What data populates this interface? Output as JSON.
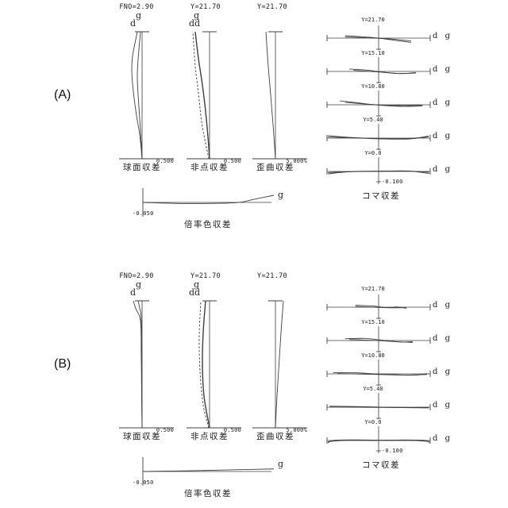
{
  "sections": [
    {
      "label": "(A)"
    },
    {
      "label": "(B)"
    }
  ],
  "colors": {
    "line": "#3f3f3f",
    "text": "#1c1c1c",
    "background": "#ffffff"
  },
  "chart_data": [
    {
      "id": "A-sph",
      "type": "line",
      "title": "FNO=2.90",
      "caption": "球面収差",
      "scale_label": "0.500",
      "axis_range": [
        -0.5,
        0.5
      ],
      "curve_labels": [
        "g",
        "d"
      ],
      "series": [
        {
          "name": "d",
          "points": [
            [
              0,
              0
            ],
            [
              0.19,
              -0.044
            ],
            [
              0.34,
              -0.103
            ],
            [
              0.53,
              -0.162
            ],
            [
              0.69,
              -0.191
            ],
            [
              0.81,
              -0.176
            ],
            [
              1,
              -0.088
            ]
          ]
        },
        {
          "name": "g",
          "points": [
            [
              0,
              0
            ],
            [
              0.22,
              -0.029
            ],
            [
              0.41,
              -0.059
            ],
            [
              0.63,
              -0.088
            ],
            [
              0.78,
              -0.074
            ],
            [
              1,
              -0.029
            ]
          ]
        }
      ]
    },
    {
      "id": "A-ast",
      "type": "line",
      "title": "Y=21.70",
      "caption": "非点収差",
      "scale_label": "0.500",
      "axis_range": [
        -0.5,
        0.5
      ],
      "curve_labels": [
        "g",
        "dd"
      ],
      "series": [
        {
          "name": "solid",
          "wide": true,
          "points": [
            [
              0,
              0
            ],
            [
              0.17,
              -0.029
            ],
            [
              0.375,
              -0.074
            ],
            [
              0.58,
              -0.132
            ],
            [
              0.79,
              -0.206
            ],
            [
              1,
              -0.265
            ]
          ]
        },
        {
          "name": "dashed",
          "dash": true,
          "points": [
            [
              0,
              -0.01
            ],
            [
              0.09,
              -0.059
            ],
            [
              0.29,
              -0.147
            ],
            [
              0.52,
              -0.206
            ],
            [
              0.73,
              -0.265
            ],
            [
              1,
              -0.309
            ]
          ]
        }
      ]
    },
    {
      "id": "A-dis",
      "type": "line",
      "title": "Y=21.70",
      "caption": "歪曲収差",
      "scale_label": "5.000%",
      "axis_range": [
        -5,
        5
      ],
      "series": [
        {
          "name": "distortion",
          "points": [
            [
              0,
              0
            ],
            [
              0.25,
              -0.41
            ],
            [
              0.5,
              -0.88
            ],
            [
              0.75,
              -1.37
            ],
            [
              1,
              -1.76
            ]
          ]
        }
      ]
    },
    {
      "id": "A-chr",
      "type": "line",
      "caption": "倍率色収差",
      "scale_label": "-0.050",
      "curve_label": "g",
      "axis_range": [
        -0.05,
        0.05
      ],
      "series": [
        {
          "name": "g",
          "points": [
            [
              0,
              0
            ],
            [
              0.3,
              -0.004
            ],
            [
              0.6,
              -0.003
            ],
            [
              0.75,
              0.001
            ],
            [
              0.85,
              0.011
            ],
            [
              1,
              0.025
            ]
          ]
        }
      ]
    },
    {
      "id": "A-coma",
      "type": "line",
      "caption": "コマ収差",
      "scale_label": "-0.100",
      "rows": [
        {
          "label": "Y=21.70",
          "legend": "d g",
          "series": [
            {
              "points": [
                [
                  -0.65,
                  0.019
                ],
                [
                  -0.26,
                  0.009
                ],
                [
                  0,
                  0
                ],
                [
                  0.35,
                  -0.019
                ],
                [
                  0.63,
                  -0.034
                ]
              ]
            },
            {
              "points": [
                [
                  -0.65,
                  0.009
                ],
                [
                  -0.2,
                  0.002
                ],
                [
                  0.2,
                  -0.006
                ],
                [
                  0.63,
                  -0.022
                ]
              ]
            }
          ]
        },
        {
          "label": "Y=15.10",
          "legend": "d g",
          "series": [
            {
              "points": [
                [
                  -0.57,
                  0.019
                ],
                [
                  -0.26,
                  0.012
                ],
                [
                  0,
                  -0.002
                ],
                [
                  0.35,
                  -0.016
                ],
                [
                  0.72,
                  -0.013
                ]
              ]
            },
            {
              "points": [
                [
                  -0.49,
                  0.009
                ],
                [
                  0,
                  -0.004
                ],
                [
                  0.45,
                  -0.017
                ],
                [
                  0.72,
                  -0.008
                ]
              ]
            }
          ]
        },
        {
          "label": "Y=10.80",
          "legend": "d g",
          "series": [
            {
              "points": [
                [
                  -0.75,
                  0.031
                ],
                [
                  -0.42,
                  0.016
                ],
                [
                  0,
                  -0.003
                ],
                [
                  0.43,
                  -0.013
                ],
                [
                  0.85,
                  -0.009
                ]
              ]
            },
            {
              "points": [
                [
                  -0.65,
                  0.019
                ],
                [
                  -0.2,
                  0.004
                ],
                [
                  0.3,
                  -0.006
                ],
                [
                  0.85,
                  -0.003
                ]
              ]
            }
          ]
        },
        {
          "label": "Y=5.40",
          "legend": "d g",
          "series": [
            {
              "points": [
                [
                  -0.98,
                  0.019
                ],
                [
                  -0.57,
                  0.006
                ],
                [
                  0,
                  -0.003
                ],
                [
                  0.51,
                  -0.004
                ],
                [
                  0.97,
                  0.009
                ]
              ]
            },
            {
              "points": [
                [
                  -0.98,
                  0.009
                ],
                [
                  -0.49,
                  0.002
                ],
                [
                  0,
                  -0.006
                ],
                [
                  0.58,
                  -0.007
                ],
                [
                  0.97,
                  0.016
                ]
              ]
            }
          ]
        },
        {
          "label": "Y=0.0",
          "legend": "d g",
          "series": [
            {
              "points": [
                [
                  -0.98,
                  -0.019
                ],
                [
                  -0.57,
                  -0.003
                ],
                [
                  0,
                  0.001
                ],
                [
                  0.58,
                  0.003
                ],
                [
                  0.98,
                  -0.016
                ]
              ]
            },
            {
              "points": [
                [
                  -0.98,
                  -0.009
                ],
                [
                  -0.42,
                  0.001
                ],
                [
                  0,
                  0.003
                ],
                [
                  0.51,
                  0.004
                ],
                [
                  0.98,
                  -0.006
                ]
              ]
            }
          ]
        }
      ]
    },
    {
      "id": "B-sph",
      "type": "line",
      "title": "FNO=2.90",
      "caption": "球面収差",
      "scale_label": "0.500",
      "axis_range": [
        -0.5,
        0.5
      ],
      "curve_labels": [
        "g",
        "d"
      ],
      "series": [
        {
          "name": "d",
          "points": [
            [
              0,
              0
            ],
            [
              0.25,
              -0.007
            ],
            [
              0.56,
              -0.015
            ],
            [
              0.84,
              -0.029
            ],
            [
              0.94,
              -0.118
            ],
            [
              1,
              -0.162
            ]
          ]
        },
        {
          "name": "g",
          "points": [
            [
              0,
              0
            ],
            [
              0.3,
              -0.006
            ],
            [
              0.84,
              -0.015
            ],
            [
              0.94,
              -0.044
            ],
            [
              1,
              -0.074
            ]
          ]
        }
      ]
    },
    {
      "id": "B-ast",
      "type": "line",
      "title": "Y=21.70",
      "caption": "非点収差",
      "scale_label": "0.500",
      "axis_range": [
        -0.5,
        0.5
      ],
      "curve_labels": [
        "g",
        "dd"
      ],
      "series": [
        {
          "name": "solid",
          "wide": true,
          "points": [
            [
              0,
              0
            ],
            [
              0.25,
              -0.103
            ],
            [
              0.5,
              -0.132
            ],
            [
              0.75,
              -0.118
            ],
            [
              1,
              -0.074
            ]
          ]
        },
        {
          "name": "dashed",
          "dash": true,
          "points": [
            [
              0,
              -0.015
            ],
            [
              0.18,
              -0.118
            ],
            [
              0.44,
              -0.176
            ],
            [
              0.72,
              -0.191
            ],
            [
              1,
              -0.162
            ]
          ]
        }
      ]
    },
    {
      "id": "B-dis",
      "type": "line",
      "title": "Y=21.70",
      "caption": "歪曲収差",
      "scale_label": "5.000%",
      "axis_range": [
        -5,
        5
      ],
      "series": [
        {
          "name": "distortion",
          "points": [
            [
              0,
              0
            ],
            [
              0.25,
              0.29
            ],
            [
              0.5,
              0.66
            ],
            [
              0.75,
              1.03
            ],
            [
              1,
              1.47
            ]
          ]
        }
      ]
    },
    {
      "id": "B-chr",
      "type": "line",
      "caption": "倍率色収差",
      "scale_label": "-0.050",
      "curve_label": "g",
      "axis_range": [
        -0.05,
        0.05
      ],
      "series": [
        {
          "name": "g",
          "points": [
            [
              0,
              0
            ],
            [
              0.4,
              0.003
            ],
            [
              0.7,
              0.006
            ],
            [
              1,
              0.009
            ]
          ]
        }
      ]
    },
    {
      "id": "B-coma",
      "type": "line",
      "caption": "コマ収差",
      "scale_label": "-0.100",
      "rows": [
        {
          "label": "Y=21.70",
          "legend": "d g",
          "series": [
            {
              "points": [
                [
                  -0.45,
                  0.016
                ],
                [
                  -0.11,
                  0.009
                ],
                [
                  0.18,
                  -0.004
                ],
                [
                  0.35,
                  0.002
                ],
                [
                  0.54,
                  -0.009
                ]
              ]
            },
            {
              "points": [
                [
                  -0.45,
                  0.006
                ],
                [
                  0,
                  -0.002
                ],
                [
                  0.3,
                  -0.005
                ],
                [
                  0.54,
                  -0.003
                ]
              ]
            }
          ]
        },
        {
          "label": "Y=15.10",
          "legend": "d g",
          "series": [
            {
              "points": [
                [
                  -0.65,
                  0.014
                ],
                [
                  -0.26,
                  0.017
                ],
                [
                  0,
                  0.006
                ],
                [
                  0.35,
                  -0.009
                ],
                [
                  0.66,
                  -0.015
                ]
              ]
            },
            {
              "points": [
                [
                  -0.57,
                  0.008
                ],
                [
                  0,
                  0
                ],
                [
                  0.45,
                  -0.012
                ],
                [
                  0.66,
                  -0.008
                ]
              ]
            }
          ]
        },
        {
          "label": "Y=10.80",
          "legend": "d g",
          "series": [
            {
              "points": [
                [
                  -0.88,
                  0.009
                ],
                [
                  -0.42,
                  0.008
                ],
                [
                  0,
                  -0.002
                ],
                [
                  0.51,
                  -0.009
                ],
                [
                  0.94,
                  -0.005
                ]
              ]
            },
            {
              "points": [
                [
                  -0.8,
                  0.003
                ],
                [
                  0,
                  -0.005
                ],
                [
                  0.7,
                  -0.01
                ],
                [
                  0.94,
                  0.002
                ]
              ]
            }
          ]
        },
        {
          "label": "Y=5.40",
          "legend": "d g",
          "series": [
            {
              "points": [
                [
                  -0.95,
                  0.008
                ],
                [
                  -0.42,
                  0.005
                ],
                [
                  0,
                  0.001
                ],
                [
                  0.58,
                  -0.003
                ],
                [
                  0.97,
                  -0.001
                ]
              ]
            },
            {
              "points": [
                [
                  -0.95,
                  0.002
                ],
                [
                  0,
                  -0.002
                ],
                [
                  0.6,
                  -0.004
                ],
                [
                  0.97,
                  -0.006
                ]
              ]
            }
          ]
        },
        {
          "label": "Y=0.0",
          "legend": "d g",
          "series": [
            {
              "points": [
                [
                  -0.985,
                  -0.019
                ],
                [
                  -0.86,
                  0.002
                ],
                [
                  -0.42,
                  0.005
                ],
                [
                  0,
                  0.003
                ],
                [
                  0.51,
                  0.004
                ],
                [
                  0.9,
                  0.001
                ],
                [
                  0.985,
                  -0.016
                ]
              ]
            },
            {
              "points": [
                [
                  -0.985,
                  -0.009
                ],
                [
                  -0.6,
                  0.003
                ],
                [
                  0,
                  0.001
                ],
                [
                  0.6,
                  0.002
                ],
                [
                  0.985,
                  -0.008
                ]
              ]
            }
          ]
        }
      ]
    }
  ]
}
